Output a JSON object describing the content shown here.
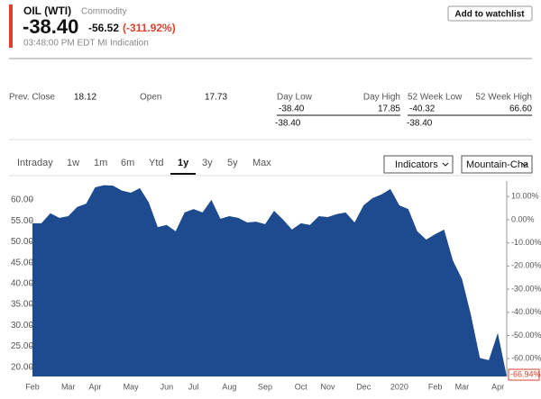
{
  "header": {
    "symbol": "OIL (WTI)",
    "kind": "Commodity",
    "price": "-38.40",
    "change": "-56.52",
    "change_pct": "(-311.92%)",
    "time": "03:48:00 PM EDT MI Indication",
    "button": "Add to watchlist"
  },
  "stats": {
    "prev_close_label": "Prev. Close",
    "prev_close": "18.12",
    "open_label": "Open",
    "open": "17.73",
    "day_low_label": "Day Low",
    "day_high_label": "Day High",
    "day_low": "-38.40",
    "day_high": "17.85",
    "day_current": "-38.40",
    "week_low_label": "52 Week Low",
    "week_high_label": "52 Week High",
    "week_low": "-40.32",
    "week_high": "66.60",
    "week_current": "-38.40"
  },
  "tabs": [
    "Intraday",
    "1w",
    "1m",
    "6m",
    "Ytd",
    "1y",
    "3y",
    "5y",
    "Max"
  ],
  "selected_tab": 5,
  "controls": {
    "indicators": "Indicators",
    "chart_type": "Mountain-Cha"
  },
  "chart_data": {
    "type": "area",
    "color": "#1e4b8f",
    "categories": [
      "Feb",
      null,
      null,
      null,
      "Mar",
      null,
      null,
      "Apr",
      null,
      null,
      null,
      "May",
      null,
      null,
      null,
      "Jun",
      null,
      null,
      "Jul",
      null,
      null,
      null,
      "Aug",
      null,
      null,
      null,
      "Sep",
      null,
      null,
      null,
      "Oct",
      null,
      null,
      "Nov",
      null,
      null,
      null,
      "Dec",
      null,
      null,
      null,
      "2020",
      null,
      null,
      null,
      "Feb",
      null,
      null,
      "Mar",
      null,
      null,
      null,
      "Apr",
      null
    ],
    "series": [
      {
        "name": "OIL (WTI)",
        "color": "#1e4b8f",
        "values": [
          54.4,
          54.4,
          56.8,
          55.7,
          56.1,
          58.3,
          59.1,
          63.0,
          63.5,
          63.4,
          62.2,
          61.7,
          62.8,
          59.4,
          53.5,
          54.0,
          52.5,
          57.0,
          57.8,
          57.0,
          60.0,
          55.5,
          56.1,
          55.7,
          54.6,
          54.8,
          54.2,
          57.4,
          55.3,
          52.9,
          54.4,
          54.0,
          56.1,
          55.9,
          56.6,
          57.0,
          54.6,
          58.7,
          60.4,
          61.3,
          62.6,
          58.7,
          57.8,
          52.5,
          50.5,
          51.8,
          52.9,
          45.4,
          41.1,
          32.5,
          22.2,
          21.7,
          28.2,
          17.8
        ]
      }
    ],
    "ylim": [
      17.8,
      64.5
    ],
    "yticks": [
      {
        "value": 20,
        "label": "20.00"
      },
      {
        "value": 25,
        "label": "25.00"
      },
      {
        "value": 30,
        "label": "30.00"
      },
      {
        "value": 35,
        "label": "35.00"
      },
      {
        "value": 40,
        "label": "40.00"
      },
      {
        "value": 45,
        "label": "45.00"
      },
      {
        "value": 50,
        "label": "50.00"
      },
      {
        "value": 55,
        "label": "55.00"
      },
      {
        "value": 60,
        "label": "60.00"
      }
    ],
    "y2lim": [
      -67.7,
      16.7
    ],
    "y2ticks": [
      {
        "value": 10,
        "label": "10.00%"
      },
      {
        "value": 0,
        "label": "0.00%"
      },
      {
        "value": -10,
        "label": "-10.00%"
      },
      {
        "value": -20,
        "label": "-20.00%"
      },
      {
        "value": -30,
        "label": "-30.00%"
      },
      {
        "value": -40,
        "label": "-40.00%"
      },
      {
        "value": -50,
        "label": "-50.00%"
      },
      {
        "value": -60,
        "label": "-60.00%"
      }
    ],
    "last_change": {
      "value": -66.94,
      "label": "-66.94%"
    }
  }
}
